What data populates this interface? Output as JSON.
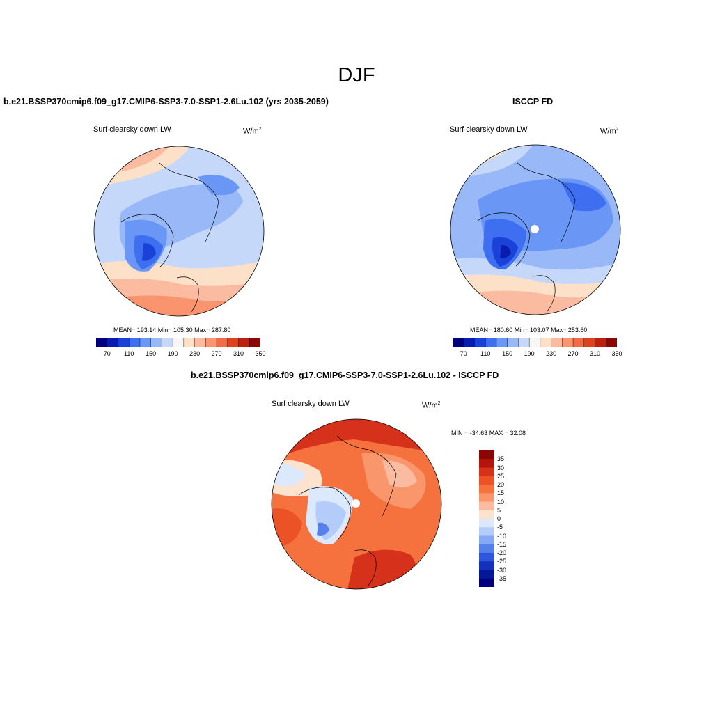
{
  "figure": {
    "season": "DJF"
  },
  "left_panel": {
    "case_title": "b.e21.BSSP370cmip6.f09_g17.CMIP6-SSP3-7.0-SSP1-2.6Lu.102 (yrs 2035-2059)",
    "variable": "Surf clearsky down LW",
    "units_base": "W/m",
    "units_exp": "2",
    "stats": "MEAN= 193.14  Min= 105.30  Max= 287.80"
  },
  "right_panel": {
    "case_title": "ISCCP FD",
    "variable": "Surf clearsky down LW",
    "units_base": "W/m",
    "units_exp": "2",
    "stats": "MEAN= 180.60  Min= 103.07  Max= 253.60"
  },
  "diff_panel": {
    "case_title": "b.e21.BSSP370cmip6.f09_g17.CMIP6-SSP3-7.0-SSP1-2.6Lu.102 - ISCCP FD",
    "variable": "Surf clearsky down LW",
    "units_base": "W/m",
    "units_exp": "2",
    "stats": "MIN = -34.63 MAX =  32.08"
  },
  "abs_colorbar": {
    "labels": [
      "70",
      "110",
      "150",
      "190",
      "230",
      "270",
      "310",
      "350"
    ],
    "colors": [
      "#00007e",
      "#0a1cb0",
      "#1b42d8",
      "#3d6ff0",
      "#6a97f5",
      "#98b8f8",
      "#c5d8fa",
      "#f7f7f7",
      "#fde0c8",
      "#fbbba0",
      "#f9946f",
      "#f26b46",
      "#e0401f",
      "#be2010",
      "#8c0606"
    ]
  },
  "diff_colorbar": {
    "labels": [
      "35",
      "30",
      "25",
      "20",
      "15",
      "10",
      "5",
      "0",
      "-5",
      "-10",
      "-15",
      "-20",
      "-25",
      "-30",
      "-35"
    ],
    "colors": [
      "#8c0606",
      "#b5160c",
      "#d6311a",
      "#eb5226",
      "#f5723f",
      "#f9966c",
      "#fbbba0",
      "#fde3cd",
      "#dce8fb",
      "#b3ccfa",
      "#86a9f5",
      "#5580ec",
      "#2f55dd",
      "#1431bd",
      "#041796",
      "#00007e"
    ]
  }
}
